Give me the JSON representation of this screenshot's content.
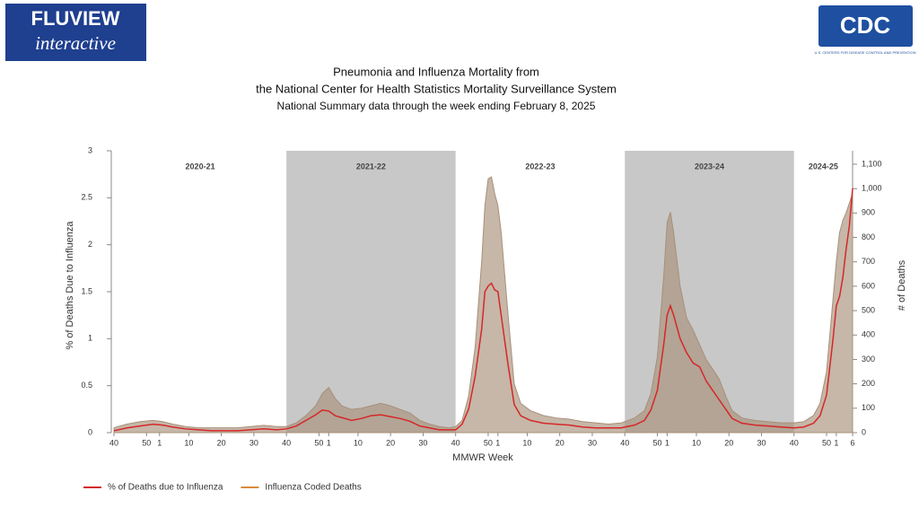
{
  "header": {
    "logo_text": "FLUVIEW",
    "logo_subtext": "interactive",
    "agency": "CDC",
    "agency_subtext": "U.S. CENTERS FOR DISEASE CONTROL AND PREVENTION"
  },
  "chart_data": {
    "type": "line",
    "title": [
      "Pneumonia and Influenza Mortality from",
      "the National Center for Health Statistics Mortality Surveillance System"
    ],
    "subtitle": "National Summary data through the week ending February 8, 2025",
    "x_label": "MMWR Week",
    "y_label": "% of Deaths Due to Influenza",
    "y2_label": "# of Deaths",
    "xlim": [
      0,
      227
    ],
    "xticks": [
      {
        "value": 0,
        "label": "40"
      },
      {
        "value": 10,
        "label": "50"
      },
      {
        "value": 14,
        "label": "1"
      },
      {
        "value": 23,
        "label": "10"
      },
      {
        "value": 33,
        "label": "20"
      },
      {
        "value": 43,
        "label": "30"
      },
      {
        "value": 53,
        "label": "40"
      },
      {
        "value": 63,
        "label": "50"
      },
      {
        "value": 66,
        "label": "1"
      },
      {
        "value": 75,
        "label": "10"
      },
      {
        "value": 85,
        "label": "20"
      },
      {
        "value": 95,
        "label": "30"
      },
      {
        "value": 105,
        "label": "40"
      },
      {
        "value": 115,
        "label": "50"
      },
      {
        "value": 118,
        "label": "1"
      },
      {
        "value": 127,
        "label": "10"
      },
      {
        "value": 137,
        "label": "20"
      },
      {
        "value": 147,
        "label": "30"
      },
      {
        "value": 157,
        "label": "40"
      },
      {
        "value": 167,
        "label": "50"
      },
      {
        "value": 170,
        "label": "1"
      },
      {
        "value": 179,
        "label": "10"
      },
      {
        "value": 189,
        "label": "20"
      },
      {
        "value": 199,
        "label": "30"
      },
      {
        "value": 209,
        "label": "40"
      },
      {
        "value": 219,
        "label": "50"
      },
      {
        "value": 222,
        "label": "1"
      },
      {
        "value": 227,
        "label": "6"
      }
    ],
    "ylim": [
      0,
      3
    ],
    "yticks": [
      0,
      0.5,
      1,
      1.5,
      2,
      2.5,
      3
    ],
    "y2lim": [
      0,
      1155
    ],
    "y2ticks": [
      0,
      100,
      200,
      300,
      400,
      500,
      600,
      700,
      800,
      900,
      {
        "value": 1000,
        "label": "1,000"
      },
      {
        "value": 1100,
        "label": "1,100"
      }
    ],
    "seasons": [
      {
        "label": "2020-21",
        "start": 0,
        "end": 53,
        "shaded": false
      },
      {
        "label": "2021-22",
        "start": 53,
        "end": 105,
        "shaded": true
      },
      {
        "label": "2022-23",
        "start": 105,
        "end": 157,
        "shaded": false
      },
      {
        "label": "2023-24",
        "start": 157,
        "end": 209,
        "shaded": true
      },
      {
        "label": "2024-25",
        "start": 209,
        "end": 227,
        "shaded": false
      }
    ],
    "shade_color": "#c8c8c8",
    "legend": "bottom-left",
    "x": [
      0,
      4,
      8,
      12,
      15,
      18,
      22,
      26,
      30,
      34,
      38,
      42,
      46,
      50,
      53,
      56,
      59,
      62,
      64,
      66,
      68,
      70,
      73,
      76,
      79,
      82,
      85,
      88,
      91,
      94,
      97,
      100,
      103,
      105,
      107,
      109,
      111,
      113,
      114,
      115,
      116,
      117,
      118,
      119,
      121,
      123,
      125,
      128,
      132,
      136,
      140,
      144,
      148,
      152,
      156,
      157,
      160,
      163,
      165,
      167,
      169,
      170,
      171,
      172,
      174,
      176,
      178,
      180,
      182,
      184,
      186,
      188,
      190,
      193,
      197,
      201,
      205,
      209,
      212,
      215,
      217,
      219,
      220,
      221,
      222,
      223,
      224,
      225,
      226,
      227
    ],
    "series": [
      {
        "name": "% of Deaths due to Influenza",
        "color": "#d62728",
        "axis": "y",
        "values": [
          0.02,
          0.05,
          0.07,
          0.09,
          0.08,
          0.06,
          0.04,
          0.03,
          0.02,
          0.02,
          0.02,
          0.03,
          0.04,
          0.03,
          0.04,
          0.07,
          0.13,
          0.19,
          0.24,
          0.23,
          0.18,
          0.16,
          0.13,
          0.15,
          0.18,
          0.19,
          0.17,
          0.15,
          0.12,
          0.07,
          0.05,
          0.03,
          0.03,
          0.03,
          0.09,
          0.25,
          0.6,
          1.1,
          1.5,
          1.56,
          1.59,
          1.52,
          1.5,
          1.25,
          0.75,
          0.3,
          0.18,
          0.13,
          0.1,
          0.09,
          0.08,
          0.06,
          0.05,
          0.05,
          0.05,
          0.06,
          0.08,
          0.13,
          0.24,
          0.45,
          0.95,
          1.25,
          1.35,
          1.25,
          1.0,
          0.85,
          0.74,
          0.7,
          0.55,
          0.45,
          0.35,
          0.25,
          0.15,
          0.1,
          0.08,
          0.07,
          0.06,
          0.05,
          0.06,
          0.1,
          0.18,
          0.4,
          0.7,
          1.0,
          1.35,
          1.45,
          1.65,
          1.95,
          2.2,
          2.6
        ]
      },
      {
        "name": "Influenza Coded Deaths",
        "color": "#d98c3a",
        "fill": "#a8907a",
        "axis": "y2",
        "values": [
          20,
          35,
          45,
          50,
          45,
          35,
          25,
          20,
          20,
          20,
          20,
          25,
          30,
          25,
          25,
          40,
          70,
          110,
          160,
          185,
          140,
          110,
          95,
          100,
          110,
          120,
          110,
          95,
          80,
          50,
          35,
          25,
          20,
          25,
          50,
          150,
          350,
          700,
          930,
          1040,
          1048,
          980,
          930,
          820,
          500,
          200,
          120,
          90,
          70,
          60,
          55,
          45,
          40,
          35,
          40,
          45,
          60,
          90,
          160,
          310,
          650,
          860,
          904,
          820,
          600,
          470,
          420,
          360,
          300,
          260,
          220,
          150,
          90,
          60,
          50,
          45,
          40,
          40,
          45,
          70,
          120,
          250,
          400,
          550,
          700,
          820,
          870,
          900,
          940,
          980
        ]
      }
    ]
  }
}
